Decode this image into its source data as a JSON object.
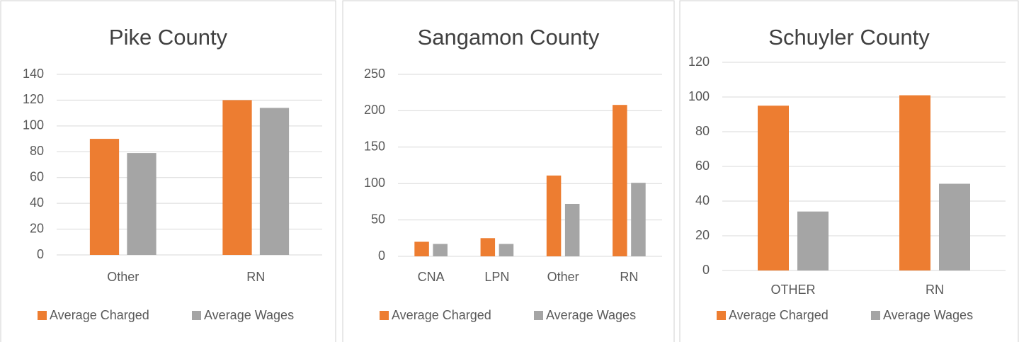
{
  "chart_data": [
    {
      "type": "bar",
      "title": "Pike County",
      "categories": [
        "Other",
        "RN"
      ],
      "series": [
        {
          "name": "Average Charged",
          "color": "#ed7d31",
          "values": [
            90,
            120
          ]
        },
        {
          "name": "Average Wages",
          "color": "#a5a5a5",
          "values": [
            79,
            114
          ]
        }
      ],
      "ylim": [
        0,
        140
      ],
      "yticks": [
        0,
        20,
        40,
        60,
        80,
        100,
        120,
        140
      ],
      "grid": true,
      "legend": "bottom"
    },
    {
      "type": "bar",
      "title": "Sangamon County",
      "categories": [
        "CNA",
        "LPN",
        "Other",
        "RN"
      ],
      "series": [
        {
          "name": "Average Charged",
          "color": "#ed7d31",
          "values": [
            20,
            25,
            111,
            208
          ]
        },
        {
          "name": "Average Wages",
          "color": "#a5a5a5",
          "values": [
            17,
            17,
            72,
            101
          ]
        }
      ],
      "ylim": [
        0,
        250
      ],
      "yticks": [
        0,
        50,
        100,
        150,
        200,
        250
      ],
      "grid": true,
      "legend": "bottom"
    },
    {
      "type": "bar",
      "title": "Schuyler County",
      "categories": [
        "OTHER",
        "RN"
      ],
      "series": [
        {
          "name": "Average Charged",
          "color": "#ed7d31",
          "values": [
            95,
            101
          ]
        },
        {
          "name": "Average Wages",
          "color": "#a5a5a5",
          "values": [
            34,
            50
          ]
        }
      ],
      "ylim": [
        0,
        120
      ],
      "yticks": [
        0,
        20,
        40,
        60,
        80,
        100,
        120
      ],
      "grid": true,
      "legend": "bottom"
    }
  ]
}
